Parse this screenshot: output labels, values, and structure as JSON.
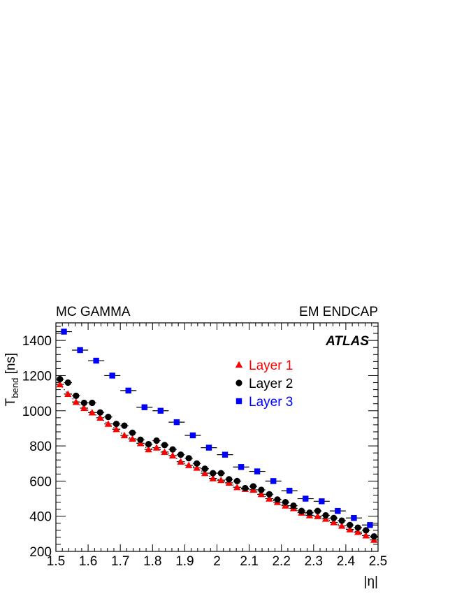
{
  "chart_data": {
    "type": "scatter",
    "top_left_label": "MC GAMMA",
    "top_right_label": "EM ENDCAP",
    "experiment_label": "ATLAS",
    "xlabel": "|η|",
    "ylabel": {
      "main": "T",
      "subscript": "bend",
      "unit": " [ns]"
    },
    "xlim": [
      1.5,
      2.5
    ],
    "ylim": [
      200,
      1500
    ],
    "x_ticks": [
      "1.5",
      "1.6",
      "1.7",
      "1.8",
      "1.9",
      "2",
      "2.1",
      "2.2",
      "2.3",
      "2.4",
      "2.5"
    ],
    "y_ticks": [
      "200",
      "400",
      "600",
      "800",
      "1000",
      "1200",
      "1400"
    ],
    "grid": false,
    "legend_placement": "upper-center",
    "series": [
      {
        "name": "Layer 1",
        "marker": "triangle",
        "color": "#ff0000",
        "bin_width": 0.025,
        "fit_line": "dotted",
        "x": [
          1.5125,
          1.5375,
          1.5625,
          1.5875,
          1.6125,
          1.6375,
          1.6625,
          1.6875,
          1.7125,
          1.7375,
          1.7625,
          1.7875,
          1.8125,
          1.8375,
          1.8625,
          1.8875,
          1.9125,
          1.9375,
          1.9625,
          1.9875,
          2.0125,
          2.0375,
          2.0625,
          2.0875,
          2.1125,
          2.1375,
          2.1625,
          2.1875,
          2.2125,
          2.2375,
          2.2625,
          2.2875,
          2.3125,
          2.3375,
          2.3625,
          2.3875,
          2.4125,
          2.4375,
          2.4625,
          2.4875
        ],
        "y": [
          1150,
          1095,
          1050,
          1015,
          990,
          960,
          925,
          895,
          860,
          840,
          815,
          780,
          790,
          765,
          745,
          710,
          690,
          675,
          645,
          615,
          605,
          590,
          565,
          555,
          550,
          525,
          500,
          480,
          460,
          445,
          420,
          405,
          400,
          385,
          365,
          345,
          325,
          310,
          290,
          265
        ]
      },
      {
        "name": "Layer 2",
        "marker": "circle",
        "color": "#000000",
        "bin_width": 0.025,
        "x": [
          1.5125,
          1.5375,
          1.5625,
          1.5875,
          1.6125,
          1.6375,
          1.6625,
          1.6875,
          1.7125,
          1.7375,
          1.7625,
          1.7875,
          1.8125,
          1.8375,
          1.8625,
          1.8875,
          1.9125,
          1.9375,
          1.9625,
          1.9875,
          2.0125,
          2.0375,
          2.0625,
          2.0875,
          2.1125,
          2.1375,
          2.1625,
          2.1875,
          2.2125,
          2.2375,
          2.2625,
          2.2875,
          2.3125,
          2.3375,
          2.3625,
          2.3875,
          2.4125,
          2.4375,
          2.4625,
          2.4875
        ],
        "y": [
          1180,
          1160,
          1085,
          1045,
          1045,
          990,
          965,
          925,
          915,
          875,
          835,
          810,
          830,
          805,
          780,
          750,
          730,
          700,
          670,
          645,
          645,
          610,
          600,
          560,
          570,
          550,
          525,
          495,
          480,
          460,
          430,
          420,
          430,
          405,
          390,
          375,
          350,
          335,
          320,
          285
        ]
      },
      {
        "name": "Layer 3",
        "marker": "square",
        "color": "#0000ff",
        "bin_width": 0.05,
        "x": [
          1.525,
          1.575,
          1.625,
          1.675,
          1.725,
          1.775,
          1.825,
          1.875,
          1.925,
          1.975,
          2.025,
          2.075,
          2.125,
          2.175,
          2.225,
          2.275,
          2.325,
          2.375,
          2.425,
          2.475
        ],
        "y": [
          1450,
          1345,
          1285,
          1200,
          1115,
          1020,
          1000,
          935,
          860,
          790,
          750,
          680,
          655,
          600,
          545,
          500,
          485,
          430,
          390,
          350
        ]
      }
    ]
  }
}
